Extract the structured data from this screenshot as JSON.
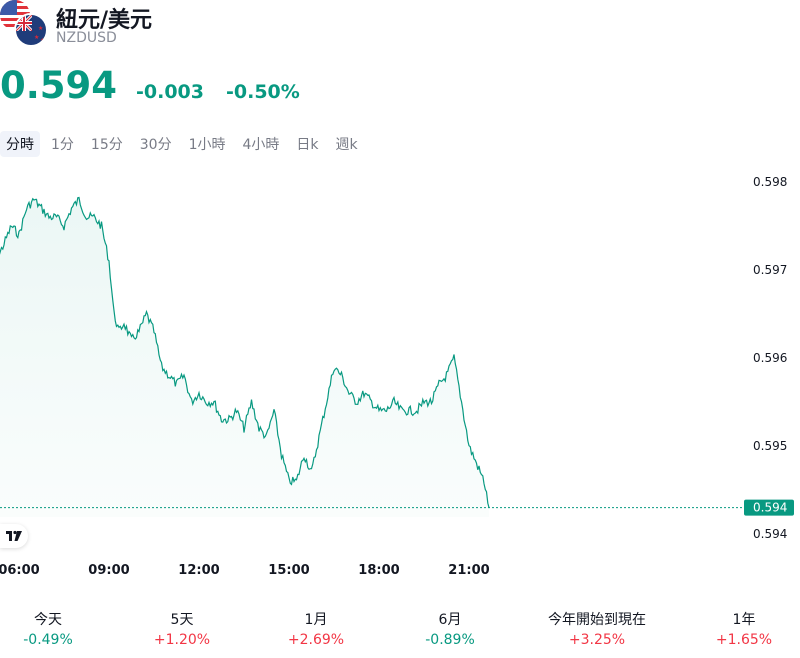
{
  "header": {
    "title": "紐元/美元",
    "symbol": "NZDUSD",
    "price": "0.594",
    "change": "-0.003",
    "change_percent": "-0.50%",
    "trend_color": "#089981",
    "flags": [
      "us-flag-icon",
      "nz-flag-icon"
    ]
  },
  "tabs": [
    {
      "label": "分時",
      "active": true
    },
    {
      "label": "1分",
      "active": false
    },
    {
      "label": "15分",
      "active": false
    },
    {
      "label": "30分",
      "active": false
    },
    {
      "label": "1小時",
      "active": false
    },
    {
      "label": "4小時",
      "active": false
    },
    {
      "label": "日k",
      "active": false
    },
    {
      "label": "週k",
      "active": false
    }
  ],
  "chart_data": {
    "type": "area",
    "y_tick_labels": [
      "0.598",
      "0.597",
      "0.596",
      "0.595",
      "0.594"
    ],
    "x_tick_labels": [
      "06:00",
      "09:00",
      "12:00",
      "15:00",
      "18:00",
      "21:00"
    ],
    "last_value_label": "0.594",
    "line_color": "#089981",
    "x_range": [
      "05:00",
      "23:59"
    ],
    "ylim": [
      0.5939,
      0.598
    ],
    "series": [
      {
        "x": [
          "05:00",
          "05:15",
          "05:30",
          "05:45",
          "06:00",
          "06:15",
          "06:30",
          "06:45",
          "07:00",
          "07:15",
          "07:30",
          "07:45",
          "08:00",
          "08:15",
          "08:30",
          "08:45",
          "09:00",
          "09:10",
          "09:20",
          "09:30",
          "09:45",
          "10:00",
          "10:15",
          "10:30",
          "10:45",
          "11:00",
          "11:15",
          "11:30",
          "11:45",
          "12:00",
          "12:15",
          "12:30",
          "12:45",
          "13:00",
          "13:15",
          "13:30",
          "13:45",
          "14:00",
          "14:15",
          "14:30",
          "14:45",
          "15:00",
          "15:15",
          "15:30",
          "15:45",
          "16:00",
          "16:15",
          "16:30",
          "16:45",
          "17:00",
          "17:15",
          "17:30",
          "17:45",
          "18:00",
          "18:15",
          "18:30",
          "18:45",
          "19:00",
          "19:15",
          "19:30",
          "19:45",
          "20:00",
          "20:15",
          "20:30",
          "20:45",
          "21:00",
          "21:15",
          "21:30",
          "21:40"
        ],
        "y": [
          0.5972,
          0.5971,
          0.5973,
          0.5975,
          0.5974,
          0.5977,
          0.5978,
          0.5977,
          0.5976,
          0.5976,
          0.5975,
          0.5977,
          0.5978,
          0.5976,
          0.5976,
          0.5975,
          0.5971,
          0.5965,
          0.5963,
          0.5964,
          0.5962,
          0.5963,
          0.5965,
          0.5963,
          0.5959,
          0.5958,
          0.5957,
          0.5958,
          0.5955,
          0.5956,
          0.5955,
          0.5955,
          0.5953,
          0.5953,
          0.5954,
          0.5952,
          0.5955,
          0.5952,
          0.5951,
          0.5954,
          0.5949,
          0.5946,
          0.5946,
          0.5949,
          0.5947,
          0.5951,
          0.5955,
          0.5959,
          0.5958,
          0.5956,
          0.5955,
          0.5956,
          0.5955,
          0.5954,
          0.5954,
          0.5955,
          0.5954,
          0.5954,
          0.5954,
          0.5955,
          0.5955,
          0.5957,
          0.5958,
          0.596,
          0.5955,
          0.595,
          0.5948,
          0.5946,
          0.5943
        ]
      }
    ]
  },
  "performance": [
    {
      "label": "今天",
      "value": "-0.49%",
      "direction": "down"
    },
    {
      "label": "5天",
      "value": "+1.20%",
      "direction": "up"
    },
    {
      "label": "1月",
      "value": "+2.69%",
      "direction": "up"
    },
    {
      "label": "6月",
      "value": "-0.89%",
      "direction": "down"
    },
    {
      "label": "今年開始到現在",
      "value": "+3.25%",
      "direction": "up"
    },
    {
      "label": "1年",
      "value": "+1.65%",
      "direction": "up"
    }
  ]
}
